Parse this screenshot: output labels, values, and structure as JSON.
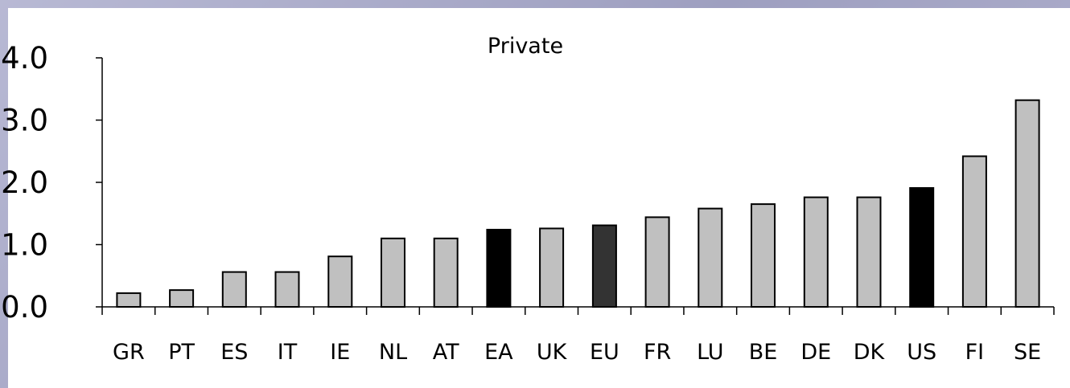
{
  "chart_data": {
    "type": "bar",
    "title": "Private",
    "xlabel": "",
    "ylabel": "",
    "ylim": [
      0,
      4
    ],
    "yticks": [
      "0.0",
      "1.0",
      "2.0",
      "3.0",
      "4.0"
    ],
    "ytick_values": [
      0,
      1,
      2,
      3,
      4
    ],
    "categories": [
      "GR",
      "PT",
      "ES",
      "IT",
      "IE",
      "NL",
      "AT",
      "EA",
      "UK",
      "EU",
      "FR",
      "LU",
      "BE",
      "DE",
      "DK",
      "US",
      "FI",
      "SE"
    ],
    "values": [
      0.22,
      0.27,
      0.56,
      0.56,
      0.81,
      1.1,
      1.1,
      1.24,
      1.26,
      1.31,
      1.44,
      1.58,
      1.65,
      1.76,
      1.76,
      1.91,
      2.42,
      3.32
    ],
    "bar_colors": [
      "#c0c0c0",
      "#c0c0c0",
      "#c0c0c0",
      "#c0c0c0",
      "#c0c0c0",
      "#c0c0c0",
      "#c0c0c0",
      "#000000",
      "#c0c0c0",
      "#333333",
      "#c0c0c0",
      "#c0c0c0",
      "#c0c0c0",
      "#c0c0c0",
      "#c0c0c0",
      "#000000",
      "#c0c0c0",
      "#c0c0c0"
    ],
    "grid": false,
    "legend": "none"
  }
}
